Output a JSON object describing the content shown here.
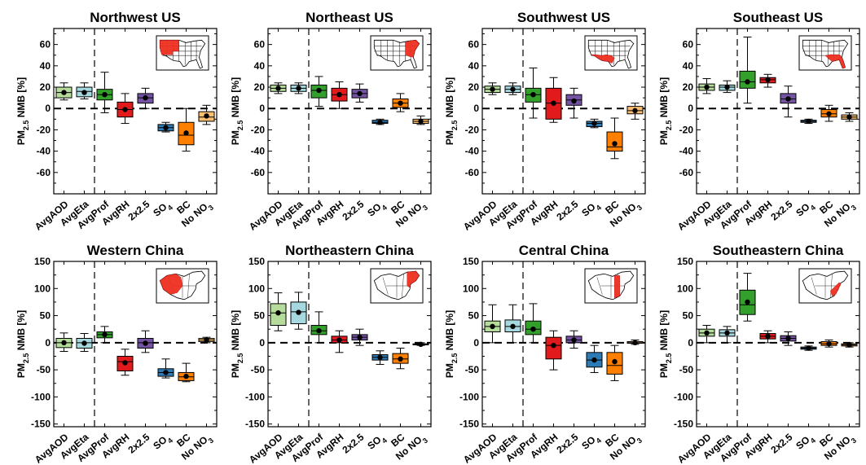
{
  "figure": {
    "ylabel_main": "PM",
    "ylabel_sub": "2.5",
    "ylabel_rest": " NMB [%]",
    "categories": [
      "AvgAOD",
      "AvgEta",
      "AvgProf",
      "AvgRH",
      "2x2.5",
      "SO4",
      "BC",
      "No NO3"
    ],
    "category_labels": [
      {
        "main": "AvgAOD",
        "sub": ""
      },
      {
        "main": "AvgEta",
        "sub": ""
      },
      {
        "main": "AvgProf",
        "sub": ""
      },
      {
        "main": "AvgRH",
        "sub": ""
      },
      {
        "main": "2x2.5",
        "sub": ""
      },
      {
        "main": "SO",
        "sub": "4"
      },
      {
        "main": "BC",
        "sub": ""
      },
      {
        "main": "No NO",
        "sub": "3"
      }
    ],
    "colors": [
      "#b5dc9b",
      "#a6d9df",
      "#33a02c",
      "#e31a1c",
      "#7453a2",
      "#2d7bb6",
      "#ff7f00",
      "#fdbf6f"
    ]
  },
  "chart_data": [
    {
      "type": "box",
      "title": "Northwest US",
      "ylim": [
        -80,
        75
      ],
      "yticks": [
        -60,
        -40,
        -20,
        0,
        20,
        40,
        60
      ],
      "boxes": [
        {
          "min": 8,
          "q1": 10,
          "median": 15,
          "q3": 20,
          "max": 24,
          "mean": 15
        },
        {
          "min": 9,
          "q1": 11,
          "median": 16,
          "q3": 20,
          "max": 24,
          "mean": 15
        },
        {
          "min": -4,
          "q1": 8,
          "median": 13,
          "q3": 18,
          "max": 34,
          "mean": 13
        },
        {
          "min": -14,
          "q1": -8,
          "median": -1,
          "q3": 6,
          "max": 14,
          "mean": -1
        },
        {
          "min": 0,
          "q1": 5,
          "median": 10,
          "q3": 14,
          "max": 19,
          "mean": 10
        },
        {
          "min": -22,
          "q1": -21,
          "median": -18,
          "q3": -15,
          "max": -13,
          "mean": -18
        },
        {
          "min": -40,
          "q1": -34,
          "median": -25,
          "q3": -13,
          "max": 0,
          "mean": -23
        },
        {
          "min": -15,
          "q1": -12,
          "median": -8,
          "q3": -3,
          "max": 3,
          "mean": -7
        }
      ]
    },
    {
      "type": "box",
      "title": "Northeast US",
      "ylim": [
        -80,
        75
      ],
      "yticks": [
        -60,
        -40,
        -20,
        0,
        20,
        40,
        60
      ],
      "boxes": [
        {
          "min": 14,
          "q1": 16,
          "median": 19,
          "q3": 22,
          "max": 24,
          "mean": 19
        },
        {
          "min": 14,
          "q1": 16,
          "median": 19,
          "q3": 22,
          "max": 24,
          "mean": 19
        },
        {
          "min": 2,
          "q1": 10,
          "median": 17,
          "q3": 22,
          "max": 30,
          "mean": 17
        },
        {
          "min": 0,
          "q1": 7,
          "median": 13,
          "q3": 19,
          "max": 25,
          "mean": 13
        },
        {
          "min": 6,
          "q1": 10,
          "median": 14,
          "q3": 18,
          "max": 23,
          "mean": 14
        },
        {
          "min": -15,
          "q1": -14,
          "median": -13,
          "q3": -11,
          "max": -10,
          "mean": -13
        },
        {
          "min": -3,
          "q1": 1,
          "median": 5,
          "q3": 9,
          "max": 14,
          "mean": 5
        },
        {
          "min": -15,
          "q1": -14,
          "median": -12,
          "q3": -10,
          "max": -7,
          "mean": -12
        }
      ]
    },
    {
      "type": "box",
      "title": "Southwest US",
      "ylim": [
        -80,
        75
      ],
      "yticks": [
        -60,
        -40,
        -20,
        0,
        20,
        40,
        60
      ],
      "boxes": [
        {
          "min": 13,
          "q1": 15,
          "median": 18,
          "q3": 21,
          "max": 24,
          "mean": 18
        },
        {
          "min": 13,
          "q1": 15,
          "median": 18,
          "q3": 21,
          "max": 24,
          "mean": 18
        },
        {
          "min": -9,
          "q1": 6,
          "median": 13,
          "q3": 19,
          "max": 38,
          "mean": 13
        },
        {
          "min": -13,
          "q1": -10,
          "median": 5,
          "q3": 19,
          "max": 29,
          "mean": 5
        },
        {
          "min": -9,
          "q1": 3,
          "median": 8,
          "q3": 13,
          "max": 19,
          "mean": 7
        },
        {
          "min": -18,
          "q1": -17,
          "median": -14,
          "q3": -12,
          "max": -10,
          "mean": -14
        },
        {
          "min": -47,
          "q1": -40,
          "median": -36,
          "q3": -22,
          "max": -9,
          "mean": -33
        },
        {
          "min": -10,
          "q1": -5,
          "median": -2,
          "q3": 2,
          "max": 5,
          "mean": -2
        }
      ]
    },
    {
      "type": "box",
      "title": "Southeast US",
      "ylim": [
        -80,
        75
      ],
      "yticks": [
        -60,
        -40,
        -20,
        0,
        20,
        40,
        60
      ],
      "boxes": [
        {
          "min": 14,
          "q1": 17,
          "median": 20,
          "q3": 23,
          "max": 28,
          "mean": 20
        },
        {
          "min": 15,
          "q1": 17,
          "median": 20,
          "q3": 22,
          "max": 26,
          "mean": 20
        },
        {
          "min": 5,
          "q1": 19,
          "median": 25,
          "q3": 35,
          "max": 67,
          "mean": 25
        },
        {
          "min": 20,
          "q1": 24,
          "median": 27,
          "q3": 29,
          "max": 32,
          "mean": 27
        },
        {
          "min": -8,
          "q1": 5,
          "median": 9,
          "q3": 14,
          "max": 21,
          "mean": 9
        },
        {
          "min": -14,
          "q1": -13,
          "median": -12,
          "q3": -11,
          "max": -10,
          "mean": -12
        },
        {
          "min": -12,
          "q1": -8,
          "median": -5,
          "q3": -1,
          "max": 3,
          "mean": -5
        },
        {
          "min": -12,
          "q1": -10,
          "median": -8,
          "q3": -6,
          "max": -4,
          "mean": -8
        }
      ]
    },
    {
      "type": "box",
      "title": "Western China",
      "ylim": [
        -155,
        150
      ],
      "yticks": [
        -150,
        -100,
        -50,
        0,
        50,
        100,
        150
      ],
      "boxes": [
        {
          "min": -16,
          "q1": -9,
          "median": 0,
          "q3": 8,
          "max": 18,
          "mean": 0
        },
        {
          "min": -16,
          "q1": -10,
          "median": 0,
          "q3": 8,
          "max": 17,
          "mean": -1
        },
        {
          "min": 0,
          "q1": 9,
          "median": 15,
          "q3": 20,
          "max": 30,
          "mean": 15
        },
        {
          "min": -60,
          "q1": -52,
          "median": -35,
          "q3": -25,
          "max": -12,
          "mean": -37
        },
        {
          "min": -18,
          "q1": -10,
          "median": 0,
          "q3": 8,
          "max": 22,
          "mean": -1
        },
        {
          "min": -65,
          "q1": -62,
          "median": -55,
          "q3": -48,
          "max": -30,
          "mean": -55
        },
        {
          "min": -72,
          "q1": -70,
          "median": -63,
          "q3": -55,
          "max": -38,
          "mean": -62
        },
        {
          "min": 0,
          "q1": 2,
          "median": 5,
          "q3": 8,
          "max": 10,
          "mean": 5
        }
      ]
    },
    {
      "type": "box",
      "title": "Northeastern China",
      "ylim": [
        -155,
        150
      ],
      "yticks": [
        -150,
        -100,
        -50,
        0,
        50,
        100,
        150
      ],
      "boxes": [
        {
          "min": 22,
          "q1": 32,
          "median": 55,
          "q3": 72,
          "max": 92,
          "mean": 55
        },
        {
          "min": 25,
          "q1": 35,
          "median": 57,
          "q3": 75,
          "max": 93,
          "mean": 56
        },
        {
          "min": 0,
          "q1": 15,
          "median": 22,
          "q3": 32,
          "max": 57,
          "mean": 22
        },
        {
          "min": -18,
          "q1": 0,
          "median": 5,
          "q3": 12,
          "max": 22,
          "mean": 5
        },
        {
          "min": -5,
          "q1": 5,
          "median": 10,
          "q3": 15,
          "max": 25,
          "mean": 10
        },
        {
          "min": -40,
          "q1": -32,
          "median": -27,
          "q3": -22,
          "max": -15,
          "mean": -27
        },
        {
          "min": -48,
          "q1": -38,
          "median": -30,
          "q3": -20,
          "max": -10,
          "mean": -30
        },
        {
          "min": -5,
          "q1": -4,
          "median": -3,
          "q3": -2,
          "max": 0,
          "mean": -3
        }
      ]
    },
    {
      "type": "box",
      "title": "Central China",
      "ylim": [
        -155,
        150
      ],
      "yticks": [
        -150,
        -100,
        -50,
        0,
        50,
        100,
        150
      ],
      "boxes": [
        {
          "min": 0,
          "q1": 20,
          "median": 30,
          "q3": 40,
          "max": 70,
          "mean": 30
        },
        {
          "min": 0,
          "q1": 20,
          "median": 30,
          "q3": 42,
          "max": 70,
          "mean": 30
        },
        {
          "min": 0,
          "q1": 15,
          "median": 25,
          "q3": 40,
          "max": 72,
          "mean": 25
        },
        {
          "min": -50,
          "q1": -30,
          "median": -5,
          "q3": 10,
          "max": 22,
          "mean": -5
        },
        {
          "min": -10,
          "q1": 0,
          "median": 5,
          "q3": 12,
          "max": 22,
          "mean": 5
        },
        {
          "min": -55,
          "q1": -45,
          "median": -32,
          "q3": -18,
          "max": -5,
          "mean": -32
        },
        {
          "min": -70,
          "q1": -58,
          "median": -42,
          "q3": -18,
          "max": -5,
          "mean": -35
        },
        {
          "min": -3,
          "q1": -1,
          "median": 0,
          "q3": 2,
          "max": 5,
          "mean": 0
        }
      ]
    },
    {
      "type": "box",
      "title": "Southeastern China",
      "ylim": [
        -155,
        150
      ],
      "yticks": [
        -150,
        -100,
        -50,
        0,
        50,
        100,
        150
      ],
      "boxes": [
        {
          "min": 0,
          "q1": 12,
          "median": 18,
          "q3": 25,
          "max": 32,
          "mean": 18
        },
        {
          "min": 0,
          "q1": 12,
          "median": 18,
          "q3": 24,
          "max": 30,
          "mean": 18
        },
        {
          "min": 40,
          "q1": 52,
          "median": 70,
          "q3": 97,
          "max": 128,
          "mean": 75
        },
        {
          "min": 0,
          "q1": 7,
          "median": 12,
          "q3": 17,
          "max": 22,
          "mean": 12
        },
        {
          "min": -5,
          "q1": 3,
          "median": 8,
          "q3": 13,
          "max": 20,
          "mean": 8
        },
        {
          "min": -14,
          "q1": -12,
          "median": -10,
          "q3": -8,
          "max": -6,
          "mean": -10
        },
        {
          "min": -8,
          "q1": -5,
          "median": -2,
          "q3": 2,
          "max": 5,
          "mean": -2
        },
        {
          "min": -8,
          "q1": -6,
          "median": -4,
          "q3": -2,
          "max": 0,
          "mean": -4
        }
      ]
    }
  ]
}
